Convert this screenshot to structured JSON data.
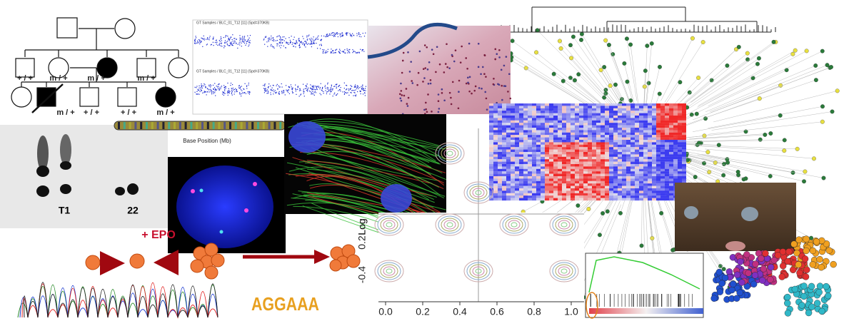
{
  "pedigree": {
    "genotypes": [
      "+ / +",
      "m / +",
      "m / +",
      "m / +",
      "m / +",
      "+ / +",
      "+ / +",
      "m / +"
    ]
  },
  "cnv_plot": {
    "titles": [
      "GT Samples / BLC_01_T12 [11]  (Spd=370KB)",
      "GT Samples / BLC_01_T12 [11]  (Spd=370KB)"
    ]
  },
  "chromosome": {
    "axis_label": "Base Position (Mb)"
  },
  "gel": {
    "labels": [
      "T1",
      "22"
    ]
  },
  "epo": {
    "label": "+ EPO"
  },
  "scatter": {
    "ylabel": "Log",
    "yticks": [
      "0.2",
      "-0.4"
    ],
    "xticks": [
      "0.0",
      "0.2",
      "0.4",
      "0.6",
      "0.8",
      "1.0"
    ]
  },
  "logo": {
    "text": "AGGAAA"
  }
}
